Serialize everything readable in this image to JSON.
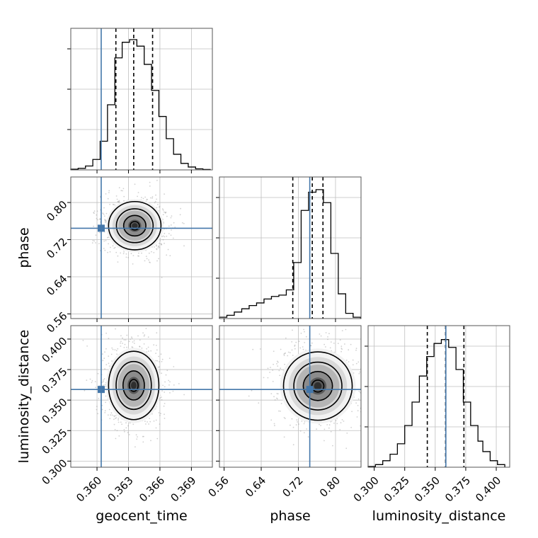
{
  "chart_data": {
    "type": "corner",
    "parameters": [
      {
        "key": "geocent_time",
        "label": "geocent_time",
        "range": [
          0.3575,
          0.371
        ],
        "ticks": [
          0.36,
          0.363,
          0.366,
          0.369
        ],
        "tick_labels": [
          "0.360",
          "0.363",
          "0.366",
          "0.369"
        ],
        "truth": 0.3604,
        "quantiles": [
          0.3618,
          0.3635,
          0.3653
        ]
      },
      {
        "key": "phase",
        "label": "phase",
        "range": [
          0.55,
          0.855
        ],
        "ticks": [
          0.56,
          0.64,
          0.72,
          0.8
        ],
        "tick_labels": [
          "0.56",
          "0.64",
          "0.72",
          "0.80"
        ],
        "truth": 0.7446,
        "quantiles": [
          0.708,
          0.75,
          0.773
        ]
      },
      {
        "key": "luminosity_distance",
        "label": "luminosity_distance",
        "range": [
          0.295,
          0.411
        ],
        "ticks": [
          0.3,
          0.325,
          0.35,
          0.375,
          0.4
        ],
        "tick_labels": [
          "0.300",
          "0.325",
          "0.350",
          "0.375",
          "0.400"
        ],
        "truth": 0.3587,
        "quantiles": [
          0.3435,
          0.3585,
          0.3735
        ]
      }
    ],
    "histograms": {
      "geocent_time": {
        "bins": [
          0.3575,
          0.3582,
          0.3589,
          0.3596,
          0.3603,
          0.361,
          0.3617,
          0.3624,
          0.3631,
          0.3638,
          0.3645,
          0.3652,
          0.3659,
          0.3666,
          0.3673,
          0.368,
          0.3687,
          0.3694,
          0.3701,
          0.3708
        ],
        "heights": [
          0.005,
          0.012,
          0.03,
          0.08,
          0.22,
          0.5,
          0.86,
          0.98,
          1.0,
          0.95,
          0.81,
          0.61,
          0.41,
          0.24,
          0.12,
          0.05,
          0.022,
          0.008,
          0.003
        ]
      },
      "phase": {
        "bins": [
          0.55,
          0.566,
          0.582,
          0.598,
          0.614,
          0.63,
          0.646,
          0.662,
          0.678,
          0.694,
          0.71,
          0.726,
          0.742,
          0.758,
          0.774,
          0.79,
          0.806,
          0.822,
          0.838,
          0.854
        ],
        "heights": [
          0.01,
          0.025,
          0.05,
          0.075,
          0.1,
          0.12,
          0.15,
          0.17,
          0.18,
          0.22,
          0.43,
          0.83,
          0.97,
          0.99,
          0.89,
          0.5,
          0.19,
          0.04,
          0.01
        ]
      },
      "luminosity_distance": {
        "bins": [
          0.295,
          0.301,
          0.307,
          0.313,
          0.319,
          0.325,
          0.331,
          0.337,
          0.343,
          0.349,
          0.355,
          0.361,
          0.367,
          0.373,
          0.379,
          0.385,
          0.389,
          0.395,
          0.401,
          0.407
        ],
        "heights": [
          0.005,
          0.02,
          0.05,
          0.1,
          0.18,
          0.32,
          0.5,
          0.7,
          0.85,
          0.95,
          0.98,
          0.92,
          0.75,
          0.5,
          0.32,
          0.2,
          0.12,
          0.05,
          0.02
        ]
      }
    },
    "joint": [
      {
        "x": "geocent_time",
        "y": "phase",
        "center": [
          0.3636,
          0.75
        ],
        "spread": [
          0.00125,
          0.026
        ]
      },
      {
        "x": "geocent_time",
        "y": "luminosity_distance",
        "center": [
          0.3635,
          0.362
        ],
        "spread": [
          0.0012,
          0.014
        ]
      },
      {
        "x": "phase",
        "y": "luminosity_distance",
        "center": [
          0.762,
          0.3615
        ],
        "spread": [
          0.037,
          0.014
        ]
      }
    ],
    "truth_color": "#4477aa",
    "contour_levels": 4,
    "grid": true
  }
}
